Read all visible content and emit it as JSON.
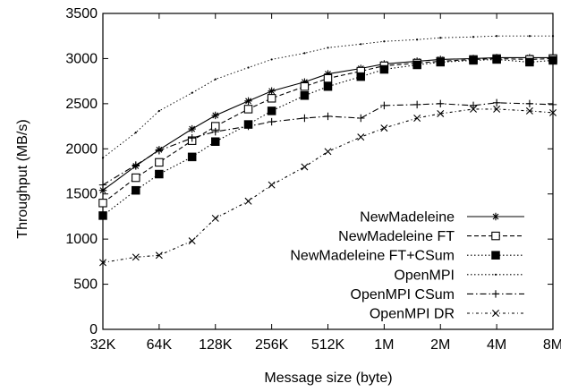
{
  "chart_data": {
    "type": "line",
    "xlabel": "Message size (byte)",
    "ylabel": "Throughput (MB/s)",
    "x_scale": "log2",
    "x_ticks": [
      "32K",
      "64K",
      "128K",
      "256K",
      "512K",
      "1M",
      "2M",
      "4M",
      "8M"
    ],
    "x": [
      "32K",
      "48K",
      "64K",
      "96K",
      "128K",
      "192K",
      "256K",
      "384K",
      "512K",
      "768K",
      "1M",
      "1.5M",
      "2M",
      "3M",
      "4M",
      "6M",
      "8M"
    ],
    "ylim": [
      0,
      3500
    ],
    "y_ticks": [
      0,
      500,
      1000,
      1500,
      2000,
      2500,
      3000,
      3500
    ],
    "grid": false,
    "legend_position": "bottom-right",
    "series": [
      {
        "name": "NewMadeleine",
        "style": "solid",
        "marker": "asterisk",
        "values": [
          1540,
          1810,
          1990,
          2220,
          2370,
          2530,
          2640,
          2740,
          2830,
          2890,
          2940,
          2970,
          2990,
          3000,
          3010,
          3010,
          3010
        ]
      },
      {
        "name": "NewMadeleine FT",
        "style": "dashed",
        "marker": "open-square",
        "values": [
          1400,
          1680,
          1850,
          2090,
          2250,
          2440,
          2560,
          2690,
          2780,
          2860,
          2920,
          2950,
          2970,
          2990,
          3000,
          2990,
          3000
        ]
      },
      {
        "name": "NewMadeleine FT+CSum",
        "style": "dotted",
        "marker": "filled-square",
        "values": [
          1260,
          1540,
          1720,
          1910,
          2080,
          2270,
          2420,
          2590,
          2690,
          2800,
          2880,
          2930,
          2960,
          2980,
          2990,
          2960,
          2980
        ]
      },
      {
        "name": "OpenMPI",
        "style": "dotted",
        "marker": "dot",
        "values": [
          1900,
          2180,
          2420,
          2620,
          2770,
          2900,
          2990,
          3060,
          3120,
          3160,
          3190,
          3210,
          3230,
          3240,
          3250,
          3250,
          3250
        ]
      },
      {
        "name": "OpenMPI CSum",
        "style": "dashdot",
        "marker": "plus",
        "values": [
          1600,
          1820,
          1980,
          2120,
          2190,
          2250,
          2300,
          2340,
          2360,
          2340,
          2480,
          2490,
          2500,
          2480,
          2510,
          2500,
          2490
        ]
      },
      {
        "name": "OpenMPI DR",
        "style": "dashdot-fine",
        "marker": "cross",
        "values": [
          740,
          800,
          820,
          980,
          1230,
          1420,
          1600,
          1800,
          1970,
          2130,
          2230,
          2340,
          2390,
          2440,
          2440,
          2420,
          2400
        ]
      }
    ]
  }
}
